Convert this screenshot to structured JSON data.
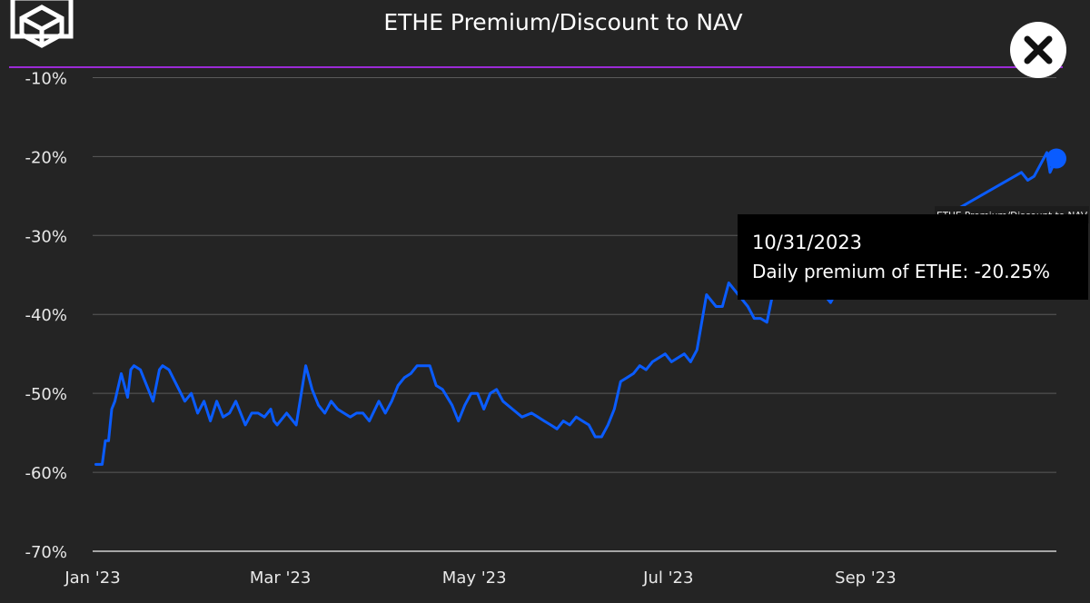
{
  "header": {
    "logo_icon": "cube-logo-icon",
    "close_icon": "close-icon",
    "accent_line_color": "#9b2bd6"
  },
  "tooltip": {
    "date": "10/31/2023",
    "text": "Daily premium of ETHE: -20.25%",
    "series_tag": "ETHE Premium/Discount to NAV"
  },
  "chart_data": {
    "type": "line",
    "title": "ETHE Premium/Discount to NAV",
    "xlabel": "",
    "ylabel": "",
    "x_ticks": [
      "Jan '23",
      "Mar '23",
      "May '23",
      "Jul '23",
      "Sep '23"
    ],
    "x_tick_dates": [
      "2023-01-01",
      "2023-03-01",
      "2023-05-01",
      "2023-07-01",
      "2023-09-01"
    ],
    "xlim": [
      "2023-01-01",
      "2023-10-31"
    ],
    "y_ticks": [
      "-10%",
      "-20%",
      "-30%",
      "-40%",
      "-50%",
      "-60%",
      "-70%"
    ],
    "y_tick_values": [
      -10,
      -20,
      -30,
      -40,
      -50,
      -60,
      -70
    ],
    "ylim": [
      -70,
      -5
    ],
    "grid": true,
    "series": [
      {
        "name": "ETHE Premium/Discount to NAV",
        "color": "#0a5cff",
        "x": [
          "2023-01-02",
          "2023-01-04",
          "2023-01-05",
          "2023-01-06",
          "2023-01-07",
          "2023-01-08",
          "2023-01-10",
          "2023-01-12",
          "2023-01-13",
          "2023-01-14",
          "2023-01-16",
          "2023-01-20",
          "2023-01-22",
          "2023-01-23",
          "2023-01-25",
          "2023-01-30",
          "2023-02-01",
          "2023-02-03",
          "2023-02-05",
          "2023-02-07",
          "2023-02-09",
          "2023-02-11",
          "2023-02-13",
          "2023-02-15",
          "2023-02-17",
          "2023-02-18",
          "2023-02-20",
          "2023-02-22",
          "2023-02-24",
          "2023-02-26",
          "2023-02-27",
          "2023-02-28",
          "2023-03-03",
          "2023-03-06",
          "2023-03-09",
          "2023-03-11",
          "2023-03-13",
          "2023-03-15",
          "2023-03-17",
          "2023-03-19",
          "2023-03-21",
          "2023-03-23",
          "2023-03-25",
          "2023-03-27",
          "2023-03-29",
          "2023-04-01",
          "2023-04-03",
          "2023-04-05",
          "2023-04-07",
          "2023-04-09",
          "2023-04-11",
          "2023-04-13",
          "2023-04-15",
          "2023-04-17",
          "2023-04-19",
          "2023-04-21",
          "2023-04-24",
          "2023-04-26",
          "2023-04-28",
          "2023-04-30",
          "2023-05-02",
          "2023-05-04",
          "2023-05-06",
          "2023-05-08",
          "2023-05-10",
          "2023-05-13",
          "2023-05-16",
          "2023-05-19",
          "2023-05-21",
          "2023-05-23",
          "2023-05-25",
          "2023-05-27",
          "2023-05-29",
          "2023-05-31",
          "2023-06-02",
          "2023-06-04",
          "2023-06-06",
          "2023-06-08",
          "2023-06-10",
          "2023-06-12",
          "2023-06-14",
          "2023-06-16",
          "2023-06-18",
          "2023-06-20",
          "2023-06-22",
          "2023-06-24",
          "2023-06-26",
          "2023-06-28",
          "2023-06-30",
          "2023-07-02",
          "2023-07-04",
          "2023-07-06",
          "2023-07-08",
          "2023-07-10",
          "2023-07-13",
          "2023-07-16",
          "2023-07-18",
          "2023-07-20",
          "2023-07-22",
          "2023-07-24",
          "2023-07-26",
          "2023-07-28",
          "2023-07-30",
          "2023-08-01",
          "2023-08-03",
          "2023-08-05",
          "2023-08-07",
          "2023-08-09",
          "2023-08-11",
          "2023-08-13",
          "2023-08-15",
          "2023-08-17",
          "2023-08-19",
          "2023-08-21",
          "2023-08-23",
          "2023-08-25",
          "2023-08-27",
          "2023-08-29",
          "2023-10-20",
          "2023-10-22",
          "2023-10-24",
          "2023-10-26",
          "2023-10-28",
          "2023-10-29",
          "2023-10-31"
        ],
        "values": [
          -59.0,
          -59.0,
          -56.0,
          -56.0,
          -52.0,
          -51.0,
          -47.5,
          -50.5,
          -47.0,
          -46.5,
          -47.0,
          -51.0,
          -47.0,
          -46.5,
          -47.0,
          -51.0,
          -50.0,
          -52.5,
          -51.0,
          -53.5,
          -51.0,
          -53.0,
          -52.5,
          -51.0,
          -53.0,
          -54.0,
          -52.5,
          -52.5,
          -53.0,
          -52.0,
          -53.5,
          -54.0,
          -52.5,
          -54.0,
          -46.5,
          -49.5,
          -51.5,
          -52.5,
          -51.0,
          -52.0,
          -52.5,
          -53.0,
          -52.5,
          -52.5,
          -53.5,
          -51.0,
          -52.5,
          -51.0,
          -49.0,
          -48.0,
          -47.5,
          -46.5,
          -46.5,
          -46.5,
          -49.0,
          -49.5,
          -51.5,
          -53.5,
          -51.5,
          -50.0,
          -50.0,
          -52.0,
          -50.0,
          -49.5,
          -51.0,
          -52.0,
          -53.0,
          -52.5,
          -53.0,
          -53.5,
          -54.0,
          -54.5,
          -53.5,
          -54.0,
          -53.0,
          -53.5,
          -54.0,
          -55.5,
          -55.5,
          -54.0,
          -52.0,
          -48.5,
          -48.0,
          -47.5,
          -46.5,
          -47.0,
          -46.0,
          -45.5,
          -45.0,
          -46.0,
          -45.5,
          -45.0,
          -46.0,
          -44.5,
          -37.5,
          -39.0,
          -39.0,
          -36.0,
          -37.0,
          -38.0,
          -39.0,
          -40.5,
          -40.5,
          -41.0,
          -37.0,
          -36.0,
          -36.5,
          -37.0,
          -36.0,
          -36.5,
          -36.0,
          -37.5,
          -37.5,
          -38.5,
          -37.0,
          -36.0,
          -35.5,
          -34.0,
          -22.0,
          -23.0,
          -22.5,
          -21.0,
          -19.5,
          -22.0,
          -20.25
        ]
      }
    ]
  }
}
